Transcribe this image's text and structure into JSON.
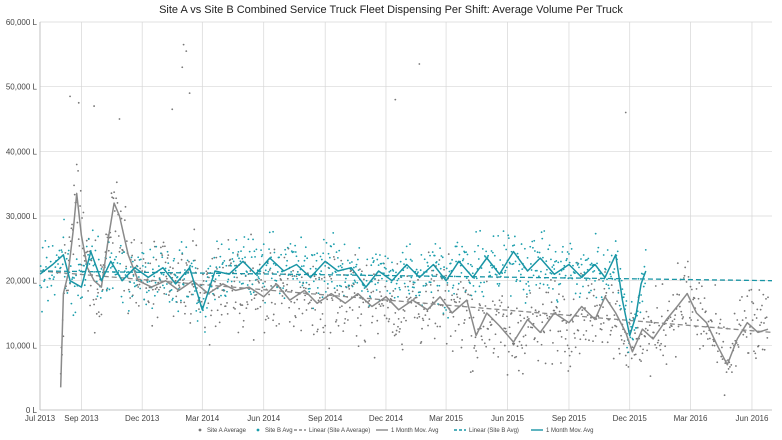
{
  "chart_data": {
    "type": "scatter",
    "title": "Site A vs Site B Combined Service Truck Fleet Dispensing Per Shift: Average Volume Per Truck",
    "xlabel": "",
    "ylabel": "",
    "x_range": [
      "2013-07-01",
      "2016-07-01"
    ],
    "x_ticks": [
      "Jul 2013",
      "Sep 2013",
      "Dec 2013",
      "Mar 2014",
      "Jun 2014",
      "Sep 2014",
      "Dec 2014",
      "Mar 2015",
      "Jun 2015",
      "Sep 2015",
      "Dec 2015",
      "Mar 2016",
      "Jun 2016"
    ],
    "x_tick_dates": [
      "2013-07-01",
      "2013-09-01",
      "2013-12-01",
      "2014-03-01",
      "2014-06-01",
      "2014-09-01",
      "2014-12-01",
      "2015-03-01",
      "2015-06-01",
      "2015-09-01",
      "2015-12-01",
      "2016-03-01",
      "2016-06-01"
    ],
    "ylim": [
      0,
      60000
    ],
    "y_ticks": [
      "0 L",
      "10,000 L",
      "20,000 L",
      "30,000 L",
      "40,000 L",
      "50,000 L",
      "60,000 L"
    ],
    "y_tick_values": [
      0,
      10000,
      20000,
      30000,
      40000,
      50000,
      60000
    ],
    "grid": true,
    "legend_position": "bottom",
    "legend": [
      "Site A Average",
      "Site B Avg",
      "Linear (Site A Average)",
      "1 Month Mov. Avg",
      "Linear (Site B Avg)",
      "1 Month Mov. Avg"
    ],
    "series": [
      {
        "name": "1 Month Mov. Avg",
        "role": "Site A moving average",
        "color": "#8a8a8a",
        "points": [
          [
            "2013-08-01",
            3500
          ],
          [
            "2013-08-05",
            18000
          ],
          [
            "2013-08-12",
            21000
          ],
          [
            "2013-08-20",
            28000
          ],
          [
            "2013-08-25",
            33500
          ],
          [
            "2013-09-01",
            27000
          ],
          [
            "2013-09-10",
            22000
          ],
          [
            "2013-09-20",
            20000
          ],
          [
            "2013-10-01",
            19000
          ],
          [
            "2013-10-12",
            27000
          ],
          [
            "2013-10-20",
            32000
          ],
          [
            "2013-10-28",
            30000
          ],
          [
            "2013-11-10",
            24000
          ],
          [
            "2013-11-25",
            20000
          ],
          [
            "2013-12-15",
            19000
          ],
          [
            "2014-01-05",
            20000
          ],
          [
            "2014-01-25",
            18500
          ],
          [
            "2014-02-15",
            20000
          ],
          [
            "2014-03-10",
            18000
          ],
          [
            "2014-04-01",
            19500
          ],
          [
            "2014-04-20",
            18500
          ],
          [
            "2014-05-10",
            19000
          ],
          [
            "2014-06-01",
            17500
          ],
          [
            "2014-06-20",
            19500
          ],
          [
            "2014-07-10",
            17000
          ],
          [
            "2014-08-01",
            18500
          ],
          [
            "2014-08-20",
            16500
          ],
          [
            "2014-09-10",
            18000
          ],
          [
            "2014-10-01",
            16500
          ],
          [
            "2014-10-20",
            18000
          ],
          [
            "2014-11-10",
            16000
          ],
          [
            "2014-12-01",
            17500
          ],
          [
            "2014-12-20",
            15500
          ],
          [
            "2015-01-10",
            17000
          ],
          [
            "2015-02-01",
            15500
          ],
          [
            "2015-02-20",
            17500
          ],
          [
            "2015-03-10",
            15000
          ],
          [
            "2015-04-01",
            17000
          ],
          [
            "2015-04-15",
            11500
          ],
          [
            "2015-05-01",
            15000
          ],
          [
            "2015-05-20",
            13000
          ],
          [
            "2015-06-10",
            10500
          ],
          [
            "2015-07-01",
            14000
          ],
          [
            "2015-07-20",
            12000
          ],
          [
            "2015-08-10",
            15000
          ],
          [
            "2015-09-01",
            13500
          ],
          [
            "2015-09-20",
            16000
          ],
          [
            "2015-10-10",
            14000
          ],
          [
            "2015-10-25",
            17500
          ],
          [
            "2015-11-10",
            15000
          ],
          [
            "2015-11-25",
            12000
          ],
          [
            "2015-12-05",
            9000
          ],
          [
            "2015-12-20",
            12500
          ],
          [
            "2016-01-05",
            11000
          ],
          [
            "2016-01-25",
            14000
          ],
          [
            "2016-02-10",
            16000
          ],
          [
            "2016-02-25",
            18000
          ],
          [
            "2016-03-10",
            15000
          ],
          [
            "2016-03-25",
            13500
          ],
          [
            "2016-04-10",
            10000
          ],
          [
            "2016-04-25",
            7000
          ],
          [
            "2016-05-10",
            11000
          ],
          [
            "2016-05-25",
            13500
          ],
          [
            "2016-06-10",
            12000
          ],
          [
            "2016-06-25",
            12500
          ]
        ]
      },
      {
        "name": "1 Month Mov. Avg",
        "role": "Site B moving average",
        "color": "#1995a5",
        "points": [
          [
            "2013-07-01",
            21000
          ],
          [
            "2013-07-20",
            22500
          ],
          [
            "2013-08-05",
            24000
          ],
          [
            "2013-08-15",
            20000
          ],
          [
            "2013-09-01",
            19000
          ],
          [
            "2013-09-15",
            24500
          ],
          [
            "2013-10-01",
            20000
          ],
          [
            "2013-10-15",
            23000
          ],
          [
            "2013-11-01",
            20000
          ],
          [
            "2013-11-20",
            22000
          ],
          [
            "2013-12-10",
            20500
          ],
          [
            "2014-01-01",
            22000
          ],
          [
            "2014-01-20",
            19500
          ],
          [
            "2014-02-10",
            22000
          ],
          [
            "2014-03-01",
            15500
          ],
          [
            "2014-03-20",
            21500
          ],
          [
            "2014-04-10",
            21000
          ],
          [
            "2014-05-01",
            23000
          ],
          [
            "2014-05-20",
            21000
          ],
          [
            "2014-06-10",
            23500
          ],
          [
            "2014-07-01",
            21500
          ],
          [
            "2014-07-20",
            22500
          ],
          [
            "2014-08-10",
            20500
          ],
          [
            "2014-09-01",
            23000
          ],
          [
            "2014-09-20",
            21500
          ],
          [
            "2014-10-10",
            22000
          ],
          [
            "2014-11-01",
            19000
          ],
          [
            "2014-11-20",
            21500
          ],
          [
            "2014-12-10",
            20000
          ],
          [
            "2015-01-01",
            22500
          ],
          [
            "2015-01-20",
            20500
          ],
          [
            "2015-02-10",
            22500
          ],
          [
            "2015-03-01",
            20000
          ],
          [
            "2015-03-20",
            23000
          ],
          [
            "2015-04-10",
            20500
          ],
          [
            "2015-05-01",
            23500
          ],
          [
            "2015-05-20",
            21000
          ],
          [
            "2015-06-10",
            24500
          ],
          [
            "2015-07-01",
            21500
          ],
          [
            "2015-07-20",
            23500
          ],
          [
            "2015-08-10",
            21000
          ],
          [
            "2015-09-01",
            22500
          ],
          [
            "2015-09-20",
            20500
          ],
          [
            "2015-10-10",
            22500
          ],
          [
            "2015-10-25",
            20500
          ],
          [
            "2015-11-10",
            24000
          ],
          [
            "2015-11-20",
            17000
          ],
          [
            "2015-12-01",
            11500
          ],
          [
            "2015-12-10",
            14500
          ],
          [
            "2015-12-18",
            19500
          ],
          [
            "2015-12-25",
            21500
          ]
        ]
      }
    ],
    "trendlines": [
      {
        "name": "Linear (Site A Average)",
        "color": "#8a8a8a",
        "style": "dashed",
        "from": [
          "2013-07-01",
          21500
        ],
        "to": [
          "2016-07-01",
          12000
        ]
      },
      {
        "name": "Linear (Site B Avg)",
        "color": "#1995a5",
        "style": "dashed",
        "from": [
          "2013-07-01",
          21500
        ],
        "to": [
          "2016-07-01",
          20000
        ]
      }
    ],
    "scatter": [
      {
        "name": "Site A Average",
        "color": "#777777",
        "note": "approximately 1000 daily points spread roughly between 5,000 L and 35,000 L; notable outliers listed",
        "outliers": [
          [
            "2013-08-15",
            48500
          ],
          [
            "2013-08-28",
            47500
          ],
          [
            "2013-09-20",
            47000
          ],
          [
            "2013-10-28",
            45000
          ],
          [
            "2014-01-15",
            46500
          ],
          [
            "2014-02-01",
            56500
          ],
          [
            "2014-02-05",
            55500
          ],
          [
            "2014-01-30",
            53000
          ],
          [
            "2014-02-10",
            49000
          ],
          [
            "2015-01-20",
            53500
          ],
          [
            "2014-12-15",
            48000
          ],
          [
            "2015-11-25",
            46000
          ]
        ]
      },
      {
        "name": "Site B Avg",
        "color": "#1a9eac",
        "note": "approximately 900 daily points spread roughly between 12,000 L and 32,000 L, ending near Dec 2015"
      }
    ]
  }
}
